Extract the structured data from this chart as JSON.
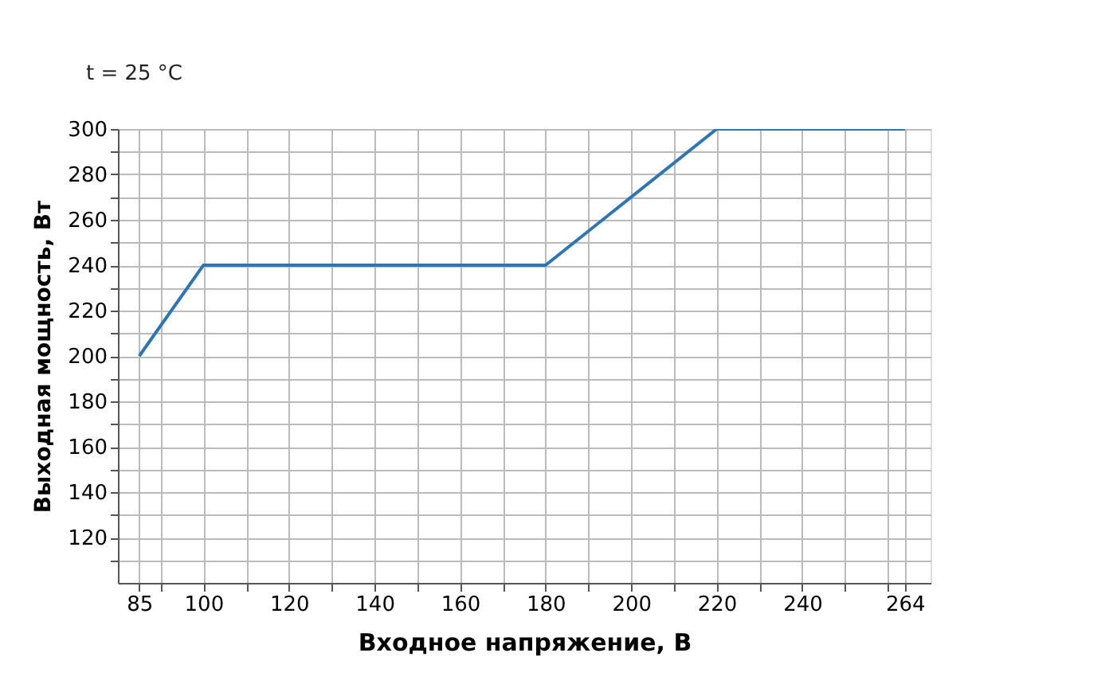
{
  "chart_data": {
    "type": "line",
    "annotations": [
      "t = 25 °C"
    ],
    "xlabel": "Входное напряжение, В",
    "ylabel": "Выходная мощность, Вт",
    "x": [
      85,
      100,
      180,
      220,
      264
    ],
    "series": [
      {
        "color": "#2e75b6",
        "values": [
          200,
          240,
          240,
          300,
          300
        ]
      }
    ],
    "xlim": [
      80,
      270
    ],
    "ylim": [
      100,
      300
    ],
    "xticks": [
      85,
      {
        "value": 90,
        "label": null
      },
      100,
      {
        "value": 110,
        "label": null
      },
      120,
      {
        "value": 130,
        "label": null
      },
      140,
      {
        "value": 150,
        "label": null
      },
      160,
      {
        "value": 170,
        "label": null
      },
      180,
      {
        "value": 190,
        "label": null
      },
      200,
      {
        "value": 210,
        "label": null
      },
      220,
      {
        "value": 230,
        "label": null
      },
      240,
      {
        "value": 250,
        "label": null
      },
      {
        "value": 260,
        "label": null
      },
      264
    ],
    "yticks": [
      {
        "value": 110,
        "label": null
      },
      120,
      {
        "value": 130,
        "label": null
      },
      140,
      {
        "value": 150,
        "label": null
      },
      160,
      {
        "value": 170,
        "label": null
      },
      180,
      {
        "value": 190,
        "label": null
      },
      200,
      {
        "value": 210,
        "label": null
      },
      220,
      {
        "value": 230,
        "label": null
      },
      240,
      {
        "value": 250,
        "label": null
      },
      260,
      {
        "value": 270,
        "label": null
      },
      280,
      {
        "value": 290,
        "label": null
      },
      300
    ],
    "grid": true,
    "marker": "none",
    "line_style": "solid"
  }
}
